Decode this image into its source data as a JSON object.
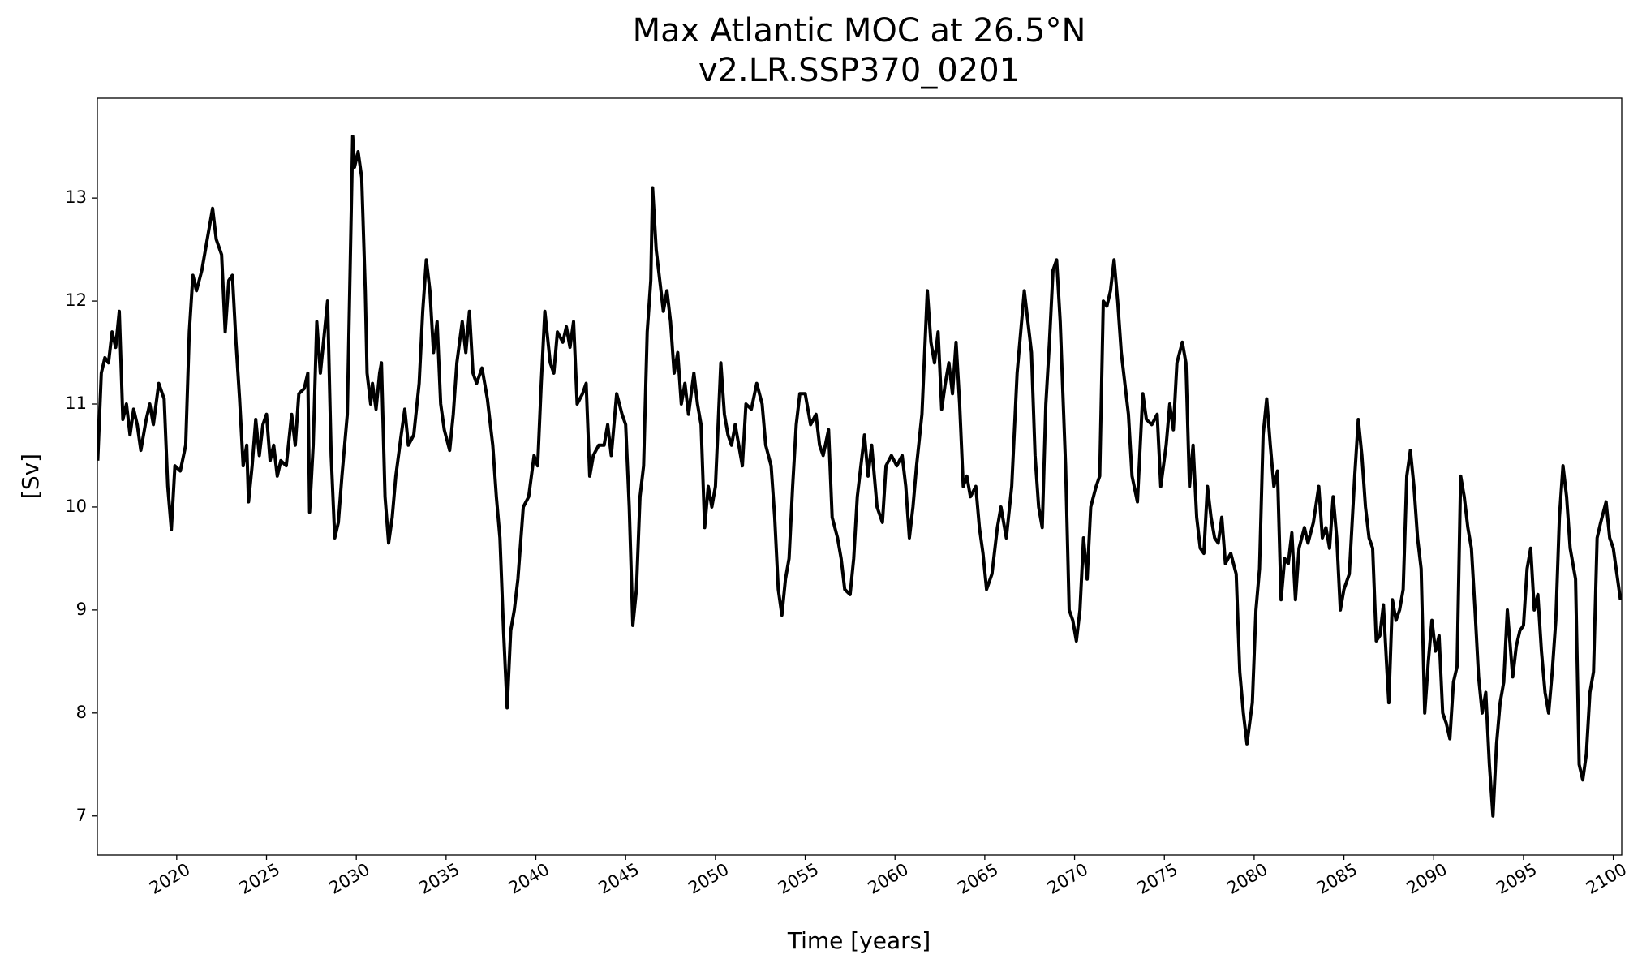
{
  "chart_data": {
    "type": "line",
    "title": "Max Atlantic MOC at 26.5°N",
    "subtitle": "v2.LR.SSP370_0201",
    "xlabel": "Time [years]",
    "ylabel": "[Sv]",
    "color": "#000000",
    "xlim": [
      2015.58,
      2100.47
    ],
    "ylim": [
      6.62,
      13.97
    ],
    "xticks": [
      2020,
      2025,
      2030,
      2035,
      2040,
      2045,
      2050,
      2055,
      2060,
      2065,
      2070,
      2075,
      2080,
      2085,
      2090,
      2095,
      2100
    ],
    "yticks": [
      7,
      8,
      9,
      10,
      11,
      12,
      13
    ],
    "grid": false,
    "x": [
      2015.6,
      2015.8,
      2016.0,
      2016.2,
      2016.4,
      2016.6,
      2016.8,
      2017.0,
      2017.2,
      2017.4,
      2017.6,
      2017.8,
      2018.0,
      2018.3,
      2018.5,
      2018.7,
      2019.0,
      2019.3,
      2019.5,
      2019.7,
      2019.9,
      2020.2,
      2020.5,
      2020.7,
      2020.9,
      2021.1,
      2021.4,
      2021.6,
      2021.8,
      2022.0,
      2022.2,
      2022.5,
      2022.7,
      2022.9,
      2023.1,
      2023.3,
      2023.5,
      2023.7,
      2023.9,
      2024.0,
      2024.2,
      2024.4,
      2024.6,
      2024.8,
      2025.0,
      2025.2,
      2025.4,
      2025.6,
      2025.8,
      2026.1,
      2026.4,
      2026.6,
      2026.8,
      2027.1,
      2027.3,
      2027.4,
      2027.6,
      2027.8,
      2028.0,
      2028.2,
      2028.4,
      2028.6,
      2028.8,
      2029.0,
      2029.2,
      2029.5,
      2029.8,
      2029.9,
      2030.1,
      2030.3,
      2030.5,
      2030.6,
      2030.8,
      2030.9,
      2031.1,
      2031.3,
      2031.4,
      2031.6,
      2031.8,
      2032.0,
      2032.2,
      2032.5,
      2032.7,
      2032.9,
      2033.2,
      2033.5,
      2033.7,
      2033.9,
      2034.1,
      2034.3,
      2034.5,
      2034.7,
      2034.9,
      2035.2,
      2035.4,
      2035.6,
      2035.9,
      2036.1,
      2036.3,
      2036.5,
      2036.7,
      2037.0,
      2037.3,
      2037.6,
      2037.8,
      2038.0,
      2038.2,
      2038.4,
      2038.6,
      2038.8,
      2039.0,
      2039.3,
      2039.6,
      2039.9,
      2040.1,
      2040.3,
      2040.5,
      2040.8,
      2041.0,
      2041.2,
      2041.5,
      2041.7,
      2041.9,
      2042.1,
      2042.3,
      2042.6,
      2042.8,
      2043.0,
      2043.2,
      2043.5,
      2043.8,
      2044.0,
      2044.2,
      2044.5,
      2044.8,
      2045.0,
      2045.2,
      2045.4,
      2045.6,
      2045.8,
      2046.0,
      2046.2,
      2046.4,
      2046.5,
      2046.7,
      2046.9,
      2047.1,
      2047.3,
      2047.5,
      2047.7,
      2047.9,
      2048.1,
      2048.3,
      2048.5,
      2048.8,
      2049.0,
      2049.2,
      2049.4,
      2049.6,
      2049.8,
      2050.0,
      2050.3,
      2050.5,
      2050.7,
      2050.9,
      2051.1,
      2051.3,
      2051.5,
      2051.7,
      2052.0,
      2052.3,
      2052.6,
      2052.8,
      2053.1,
      2053.3,
      2053.5,
      2053.7,
      2053.9,
      2054.1,
      2054.3,
      2054.5,
      2054.7,
      2055.0,
      2055.3,
      2055.6,
      2055.8,
      2056.0,
      2056.3,
      2056.5,
      2056.8,
      2057.0,
      2057.2,
      2057.5,
      2057.7,
      2057.9,
      2058.1,
      2058.3,
      2058.5,
      2058.7,
      2059.0,
      2059.3,
      2059.5,
      2059.8,
      2060.1,
      2060.4,
      2060.6,
      2060.8,
      2061.0,
      2061.2,
      2061.5,
      2061.8,
      2062.0,
      2062.2,
      2062.4,
      2062.6,
      2062.8,
      2063.0,
      2063.2,
      2063.4,
      2063.6,
      2063.8,
      2064.0,
      2064.2,
      2064.5,
      2064.7,
      2064.9,
      2065.1,
      2065.4,
      2065.7,
      2065.9,
      2066.2,
      2066.5,
      2066.8,
      2067.0,
      2067.2,
      2067.4,
      2067.6,
      2067.8,
      2068.0,
      2068.2,
      2068.4,
      2068.6,
      2068.8,
      2069.0,
      2069.2,
      2069.5,
      2069.7,
      2069.9,
      2070.1,
      2070.3,
      2070.5,
      2070.7,
      2070.9,
      2071.2,
      2071.4,
      2071.6,
      2071.8,
      2072.0,
      2072.2,
      2072.4,
      2072.6,
      2072.8,
      2073.0,
      2073.2,
      2073.5,
      2073.8,
      2074.0,
      2074.3,
      2074.6,
      2074.8,
      2075.1,
      2075.3,
      2075.5,
      2075.7,
      2076.0,
      2076.2,
      2076.4,
      2076.6,
      2076.8,
      2077.0,
      2077.2,
      2077.4,
      2077.6,
      2077.8,
      2078.0,
      2078.2,
      2078.4,
      2078.7,
      2079.0,
      2079.2,
      2079.4,
      2079.6,
      2079.9,
      2080.1,
      2080.3,
      2080.5,
      2080.7,
      2080.9,
      2081.1,
      2081.3,
      2081.5,
      2081.7,
      2081.9,
      2082.1,
      2082.3,
      2082.5,
      2082.8,
      2083.0,
      2083.3,
      2083.6,
      2083.8,
      2084.0,
      2084.2,
      2084.4,
      2084.6,
      2084.8,
      2085.0,
      2085.3,
      2085.6,
      2085.8,
      2086.0,
      2086.2,
      2086.4,
      2086.6,
      2086.8,
      2087.0,
      2087.2,
      2087.4,
      2087.5,
      2087.7,
      2087.9,
      2088.1,
      2088.3,
      2088.5,
      2088.7,
      2088.9,
      2089.1,
      2089.3,
      2089.5,
      2089.7,
      2089.9,
      2090.1,
      2090.3,
      2090.5,
      2090.7,
      2090.9,
      2091.1,
      2091.3,
      2091.5,
      2091.7,
      2091.9,
      2092.1,
      2092.3,
      2092.5,
      2092.7,
      2092.9,
      2093.1,
      2093.3,
      2093.5,
      2093.7,
      2093.9,
      2094.1,
      2094.4,
      2094.6,
      2094.8,
      2095.0,
      2095.2,
      2095.4,
      2095.6,
      2095.8,
      2096.0,
      2096.2,
      2096.4,
      2096.6,
      2096.8,
      2097.0,
      2097.2,
      2097.4,
      2097.6,
      2097.9,
      2098.1,
      2098.3,
      2098.5,
      2098.7,
      2098.9,
      2099.1,
      2099.3,
      2099.6,
      2099.8,
      2100.0,
      2100.4
    ],
    "values": [
      10.45,
      11.3,
      11.45,
      11.4,
      11.7,
      11.55,
      11.9,
      10.85,
      11.0,
      10.7,
      10.95,
      10.8,
      10.55,
      10.85,
      11.0,
      10.8,
      11.2,
      11.05,
      10.2,
      9.78,
      10.4,
      10.35,
      10.6,
      11.7,
      12.25,
      12.1,
      12.3,
      12.5,
      12.7,
      12.9,
      12.6,
      12.45,
      11.7,
      12.2,
      12.25,
      11.6,
      11.05,
      10.4,
      10.6,
      10.05,
      10.4,
      10.85,
      10.5,
      10.8,
      10.9,
      10.45,
      10.6,
      10.3,
      10.45,
      10.4,
      10.9,
      10.6,
      11.1,
      11.15,
      11.3,
      9.95,
      10.6,
      11.8,
      11.3,
      11.65,
      12.0,
      10.5,
      9.7,
      9.85,
      10.3,
      10.9,
      13.6,
      13.3,
      13.45,
      13.2,
      12.1,
      11.3,
      11.0,
      11.2,
      10.95,
      11.3,
      11.4,
      10.1,
      9.65,
      9.9,
      10.3,
      10.7,
      10.95,
      10.6,
      10.7,
      11.2,
      11.9,
      12.4,
      12.1,
      11.5,
      11.8,
      11.0,
      10.75,
      10.55,
      10.9,
      11.4,
      11.8,
      11.5,
      11.9,
      11.3,
      11.2,
      11.35,
      11.05,
      10.6,
      10.1,
      9.7,
      8.8,
      8.05,
      8.8,
      9.0,
      9.3,
      10.0,
      10.1,
      10.5,
      10.4,
      11.2,
      11.9,
      11.4,
      11.3,
      11.7,
      11.6,
      11.75,
      11.55,
      11.8,
      11.0,
      11.1,
      11.2,
      10.3,
      10.5,
      10.6,
      10.6,
      10.8,
      10.5,
      11.1,
      10.9,
      10.8,
      10.0,
      8.85,
      9.2,
      10.1,
      10.4,
      11.7,
      12.2,
      13.1,
      12.5,
      12.2,
      11.9,
      12.1,
      11.8,
      11.3,
      11.5,
      11.0,
      11.2,
      10.9,
      11.3,
      11.0,
      10.8,
      9.8,
      10.2,
      10.0,
      10.2,
      11.4,
      10.9,
      10.7,
      10.6,
      10.8,
      10.6,
      10.4,
      11.0,
      10.95,
      11.2,
      11.0,
      10.6,
      10.4,
      9.9,
      9.2,
      8.95,
      9.3,
      9.5,
      10.2,
      10.8,
      11.1,
      11.1,
      10.8,
      10.9,
      10.6,
      10.5,
      10.75,
      9.9,
      9.7,
      9.5,
      9.2,
      9.15,
      9.5,
      10.1,
      10.4,
      10.7,
      10.3,
      10.6,
      10.0,
      9.85,
      10.4,
      10.5,
      10.4,
      10.5,
      10.2,
      9.7,
      10.0,
      10.4,
      10.9,
      12.1,
      11.6,
      11.4,
      11.7,
      10.95,
      11.2,
      11.4,
      11.1,
      11.6,
      11.0,
      10.2,
      10.3,
      10.1,
      10.2,
      9.8,
      9.55,
      9.2,
      9.35,
      9.8,
      10.0,
      9.7,
      10.2,
      11.3,
      11.7,
      12.1,
      11.8,
      11.5,
      10.5,
      10.0,
      9.8,
      11.0,
      11.6,
      12.3,
      12.4,
      11.8,
      10.4,
      9.0,
      8.9,
      8.7,
      9.0,
      9.7,
      9.3,
      10.0,
      10.2,
      10.3,
      12.0,
      11.95,
      12.1,
      12.4,
      12.0,
      11.5,
      11.2,
      10.9,
      10.3,
      10.05,
      11.1,
      10.85,
      10.8,
      10.9,
      10.2,
      10.6,
      11.0,
      10.75,
      11.4,
      11.6,
      11.4,
      10.2,
      10.6,
      9.9,
      9.6,
      9.55,
      10.2,
      9.9,
      9.7,
      9.65,
      9.9,
      9.45,
      9.55,
      9.35,
      8.4,
      8.0,
      7.7,
      8.1,
      9.0,
      9.4,
      10.7,
      11.05,
      10.6,
      10.2,
      10.35,
      9.1,
      9.5,
      9.45,
      9.75,
      9.1,
      9.6,
      9.8,
      9.65,
      9.85,
      10.2,
      9.7,
      9.8,
      9.6,
      10.1,
      9.7,
      9.0,
      9.2,
      9.35,
      10.3,
      10.85,
      10.5,
      10.0,
      9.7,
      9.6,
      8.7,
      8.75,
      9.05,
      8.4,
      8.1,
      9.1,
      8.9,
      9.0,
      9.2,
      10.3,
      10.55,
      10.2,
      9.7,
      9.4,
      8.0,
      8.5,
      8.9,
      8.6,
      8.75,
      8.0,
      7.9,
      7.75,
      8.3,
      8.45,
      10.3,
      10.1,
      9.8,
      9.6,
      9.0,
      8.35,
      8.0,
      8.2,
      7.5,
      7.0,
      7.7,
      8.1,
      8.3,
      9.0,
      8.35,
      8.65,
      8.8,
      8.85,
      9.4,
      9.6,
      9.0,
      9.15,
      8.6,
      8.2,
      8.0,
      8.4,
      8.9,
      9.9,
      10.4,
      10.1,
      9.6,
      9.3,
      7.5,
      7.35,
      7.6,
      8.2,
      8.4,
      9.7,
      9.85,
      10.05,
      9.7,
      9.6,
      9.1
    ]
  }
}
